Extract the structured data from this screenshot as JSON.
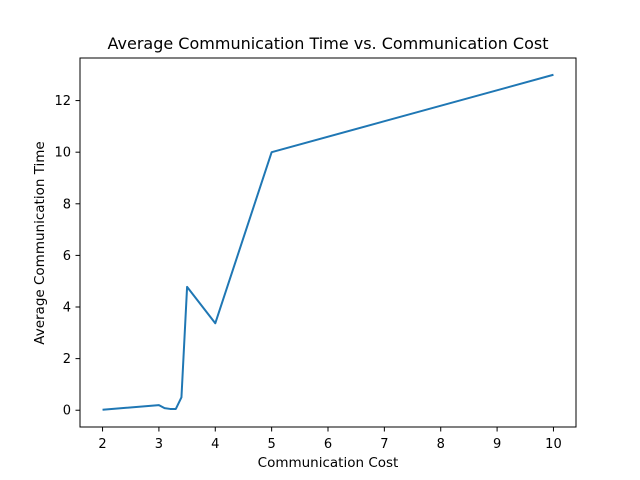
{
  "chart_data": {
    "type": "line",
    "title": "Average Communication Time vs. Communication Cost",
    "xlabel": "Communication Cost",
    "ylabel": "Average Communication Time",
    "xlim": [
      1.6,
      10.4
    ],
    "ylim": [
      -0.65,
      13.65
    ],
    "xticks": [
      2,
      3,
      4,
      5,
      6,
      7,
      8,
      9,
      10
    ],
    "yticks": [
      0,
      2,
      4,
      6,
      8,
      10,
      12
    ],
    "grid": false,
    "legend": "none",
    "series": [
      {
        "color": "#1f77b4",
        "x": [
          2.0,
          3.0,
          3.1,
          3.2,
          3.3,
          3.4,
          3.5,
          4.0,
          5.0,
          10.0
        ],
        "y": [
          0.02,
          0.2,
          0.08,
          0.05,
          0.05,
          0.5,
          4.78,
          3.37,
          10.0,
          13.0
        ]
      }
    ]
  }
}
